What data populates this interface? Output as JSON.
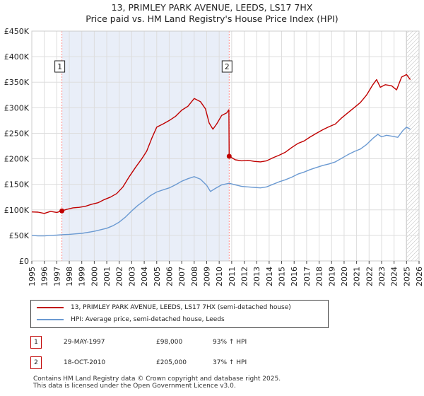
{
  "colors": {
    "property": "#c00000",
    "hpi": "#6b9ad2",
    "grid": "#dddddd",
    "sale_line": "#ff8a8a",
    "shade": "#e9eef8"
  },
  "chart_data": {
    "type": "line",
    "title": "13, PRIMLEY PARK AVENUE, LEEDS, LS17 7HX",
    "subtitle": "Price paid vs. HM Land Registry's House Price Index (HPI)",
    "xlim": [
      1995,
      2026
    ],
    "ylim": [
      0,
      450000
    ],
    "yticks": [
      {
        "value": 0,
        "label": "£0"
      },
      {
        "value": 50000,
        "label": "£50K"
      },
      {
        "value": 100000,
        "label": "£100K"
      },
      {
        "value": 150000,
        "label": "£150K"
      },
      {
        "value": 200000,
        "label": "£200K"
      },
      {
        "value": 250000,
        "label": "£250K"
      },
      {
        "value": 300000,
        "label": "£300K"
      },
      {
        "value": 350000,
        "label": "£350K"
      },
      {
        "value": 400000,
        "label": "£400K"
      },
      {
        "value": 450000,
        "label": "£450K"
      }
    ],
    "xticks": [
      "1995",
      "1996",
      "1997",
      "1998",
      "1999",
      "2000",
      "2001",
      "2002",
      "2003",
      "2004",
      "2005",
      "2006",
      "2007",
      "2008",
      "2009",
      "2010",
      "2011",
      "2012",
      "2013",
      "2014",
      "2015",
      "2016",
      "2017",
      "2018",
      "2019",
      "2020",
      "2021",
      "2022",
      "2023",
      "2024",
      "2025",
      "2026"
    ],
    "series": [
      {
        "name": "13, PRIMLEY PARK AVENUE, LEEDS, LS17 7HX (semi-detached house)",
        "points": [
          [
            1995.0,
            96000
          ],
          [
            1995.5,
            95500
          ],
          [
            1996.0,
            93000
          ],
          [
            1996.5,
            97000
          ],
          [
            1997.0,
            95000
          ],
          [
            1997.41,
            98000
          ],
          [
            1997.8,
            101000
          ],
          [
            1998.3,
            104000
          ],
          [
            1998.8,
            105000
          ],
          [
            1999.3,
            107000
          ],
          [
            1999.8,
            111000
          ],
          [
            2000.3,
            114000
          ],
          [
            2000.8,
            120000
          ],
          [
            2001.3,
            125000
          ],
          [
            2001.8,
            132000
          ],
          [
            2002.3,
            145000
          ],
          [
            2002.8,
            165000
          ],
          [
            2003.3,
            183000
          ],
          [
            2003.8,
            200000
          ],
          [
            2004.2,
            215000
          ],
          [
            2004.6,
            240000
          ],
          [
            2005.0,
            262000
          ],
          [
            2005.5,
            268000
          ],
          [
            2006.0,
            275000
          ],
          [
            2006.5,
            283000
          ],
          [
            2007.0,
            295000
          ],
          [
            2007.5,
            303000
          ],
          [
            2008.0,
            318000
          ],
          [
            2008.5,
            312000
          ],
          [
            2008.9,
            298000
          ],
          [
            2009.2,
            270000
          ],
          [
            2009.5,
            258000
          ],
          [
            2009.8,
            268000
          ],
          [
            2010.2,
            285000
          ],
          [
            2010.6,
            290000
          ],
          [
            2010.78,
            296000
          ],
          [
            2010.8,
            205000
          ],
          [
            2011.3,
            198000
          ],
          [
            2011.8,
            196000
          ],
          [
            2012.3,
            197000
          ],
          [
            2012.8,
            195000
          ],
          [
            2013.3,
            194000
          ],
          [
            2013.8,
            196000
          ],
          [
            2014.3,
            202000
          ],
          [
            2014.8,
            207000
          ],
          [
            2015.3,
            213000
          ],
          [
            2015.8,
            222000
          ],
          [
            2016.3,
            230000
          ],
          [
            2016.8,
            235000
          ],
          [
            2017.3,
            243000
          ],
          [
            2017.8,
            250000
          ],
          [
            2018.3,
            257000
          ],
          [
            2018.8,
            263000
          ],
          [
            2019.3,
            268000
          ],
          [
            2019.8,
            280000
          ],
          [
            2020.3,
            290000
          ],
          [
            2020.8,
            300000
          ],
          [
            2021.3,
            310000
          ],
          [
            2021.8,
            325000
          ],
          [
            2022.3,
            345000
          ],
          [
            2022.6,
            355000
          ],
          [
            2022.9,
            340000
          ],
          [
            2023.3,
            345000
          ],
          [
            2023.8,
            343000
          ],
          [
            2024.2,
            335000
          ],
          [
            2024.6,
            360000
          ],
          [
            2025.0,
            365000
          ],
          [
            2025.3,
            355000
          ]
        ]
      },
      {
        "name": "HPI: Average price, semi-detached house, Leeds",
        "points": [
          [
            1995.0,
            50000
          ],
          [
            1995.5,
            49000
          ],
          [
            1996.0,
            49000
          ],
          [
            1996.5,
            50000
          ],
          [
            1997.0,
            50500
          ],
          [
            1997.5,
            51500
          ],
          [
            1998.0,
            52000
          ],
          [
            1998.5,
            53000
          ],
          [
            1999.0,
            54000
          ],
          [
            1999.5,
            56000
          ],
          [
            2000.0,
            58000
          ],
          [
            2000.5,
            61000
          ],
          [
            2001.0,
            64000
          ],
          [
            2001.5,
            69000
          ],
          [
            2002.0,
            76000
          ],
          [
            2002.5,
            86000
          ],
          [
            2003.0,
            98000
          ],
          [
            2003.5,
            109000
          ],
          [
            2004.0,
            118000
          ],
          [
            2004.5,
            128000
          ],
          [
            2005.0,
            135000
          ],
          [
            2005.5,
            139000
          ],
          [
            2006.0,
            143000
          ],
          [
            2006.5,
            149000
          ],
          [
            2007.0,
            156000
          ],
          [
            2007.5,
            161000
          ],
          [
            2008.0,
            165000
          ],
          [
            2008.5,
            160000
          ],
          [
            2009.0,
            148000
          ],
          [
            2009.3,
            136000
          ],
          [
            2009.7,
            142000
          ],
          [
            2010.2,
            149000
          ],
          [
            2010.8,
            152000
          ],
          [
            2011.3,
            149000
          ],
          [
            2011.8,
            146000
          ],
          [
            2012.3,
            145000
          ],
          [
            2012.8,
            144000
          ],
          [
            2013.3,
            143000
          ],
          [
            2013.8,
            145000
          ],
          [
            2014.3,
            150000
          ],
          [
            2014.8,
            155000
          ],
          [
            2015.3,
            159000
          ],
          [
            2015.8,
            164000
          ],
          [
            2016.3,
            170000
          ],
          [
            2016.8,
            174000
          ],
          [
            2017.3,
            179000
          ],
          [
            2017.8,
            183000
          ],
          [
            2018.3,
            187000
          ],
          [
            2018.8,
            190000
          ],
          [
            2019.3,
            194000
          ],
          [
            2019.8,
            201000
          ],
          [
            2020.3,
            208000
          ],
          [
            2020.8,
            214000
          ],
          [
            2021.3,
            219000
          ],
          [
            2021.8,
            228000
          ],
          [
            2022.3,
            240000
          ],
          [
            2022.7,
            248000
          ],
          [
            2023.0,
            243000
          ],
          [
            2023.4,
            246000
          ],
          [
            2023.9,
            244000
          ],
          [
            2024.3,
            242000
          ],
          [
            2024.7,
            255000
          ],
          [
            2025.0,
            262000
          ],
          [
            2025.3,
            258000
          ]
        ]
      }
    ],
    "sales": [
      {
        "id": "1",
        "x": 1997.41,
        "value": 98000
      },
      {
        "id": "2",
        "x": 2010.8,
        "value": 205000
      }
    ],
    "future_start": 2025.0
  },
  "legend": {
    "property": "13, PRIMLEY PARK AVENUE, LEEDS, LS17 7HX (semi-detached house)",
    "hpi": "HPI: Average price, semi-detached house, Leeds"
  },
  "transactions": [
    {
      "id": "1",
      "date": "29-MAY-1997",
      "price": "£98,000",
      "hpi": "93% ↑ HPI"
    },
    {
      "id": "2",
      "date": "18-OCT-2010",
      "price": "£205,000",
      "hpi": "37% ↑ HPI"
    }
  ],
  "footer": {
    "line1": "Contains HM Land Registry data © Crown copyright and database right 2025.",
    "line2": "This data is licensed under the Open Government Licence v3.0."
  }
}
